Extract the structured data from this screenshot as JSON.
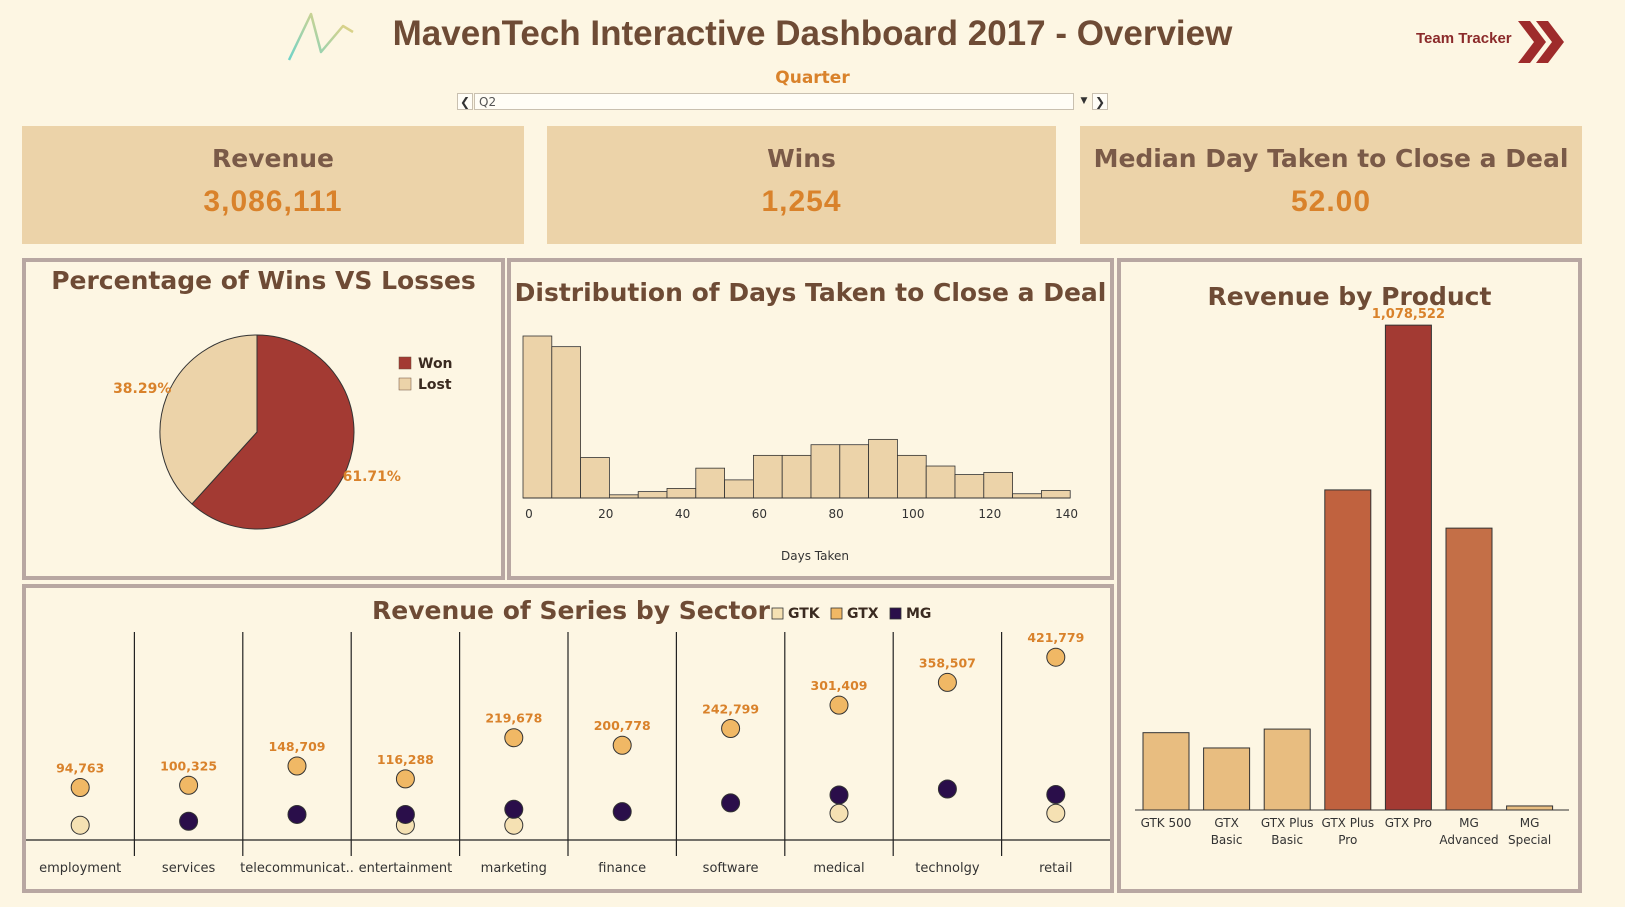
{
  "header": {
    "title": "MavenTech Interactive Dashboard 2017 - Overview",
    "team_tracker_label": "Team Tracker",
    "quarter_label": "Quarter",
    "quarter_value": "Q2"
  },
  "kpis": [
    {
      "label": "Revenue",
      "value": "3,086,111"
    },
    {
      "label": "Wins",
      "value": "1,254"
    },
    {
      "label": "Median Day Taken to Close a Deal",
      "value": "52.00"
    }
  ],
  "colors": {
    "won": "#a33a33",
    "lost": "#ecd3a9",
    "hist": "#ecd3a9",
    "gtk": "#f5e1b3",
    "gtx": "#f0b865",
    "mg": "#2a0e4a",
    "label": "#d9822b"
  },
  "pie_chart": {
    "title": "Percentage of Wins VS Losses",
    "legend": [
      {
        "name": "Won",
        "color": "#a33a33"
      },
      {
        "name": "Lost",
        "color": "#ecd3a9"
      }
    ]
  },
  "histogram": {
    "title": "Distribution of Days Taken to Close a Deal",
    "xlabel": "Days Taken",
    "ticks": [
      "0",
      "20",
      "40",
      "60",
      "80",
      "100",
      "120",
      "140"
    ]
  },
  "product_chart": {
    "title": "Revenue by Product"
  },
  "sector_chart": {
    "title": "Revenue of Series by Sector",
    "legend": [
      {
        "name": "GTK",
        "color": "#f5e1b3"
      },
      {
        "name": "GTX",
        "color": "#f0b865"
      },
      {
        "name": "MG",
        "color": "#2a0e4a"
      }
    ]
  },
  "chart_data": [
    {
      "type": "pie",
      "title": "Percentage of Wins VS Losses",
      "categories": [
        "Won",
        "Lost"
      ],
      "values": [
        61.71,
        38.29
      ],
      "labels": [
        "61.71%",
        "38.29%"
      ],
      "legend_position": "top-right"
    },
    {
      "type": "bar",
      "title": "Distribution of Days Taken to Close a Deal",
      "xlabel": "Days Taken",
      "bin_width": 7.5,
      "x_start": 0,
      "values": [
        152,
        142,
        38,
        3,
        6,
        9,
        28,
        17,
        40,
        40,
        50,
        50,
        55,
        40,
        30,
        22,
        24,
        4,
        7
      ],
      "xlim": [
        0,
        142.5
      ]
    },
    {
      "type": "bar",
      "title": "Revenue by Product",
      "categories": [
        "GTK 500",
        "GTX Basic",
        "GTX Plus Basic",
        "GTX Plus Pro",
        "GTX Pro",
        "MG Advanced",
        "MG Special"
      ],
      "category_lines": [
        [
          "GTK 500"
        ],
        [
          "GTX",
          "Basic"
        ],
        [
          "GTX Plus",
          "Basic"
        ],
        [
          "GTX Plus",
          "Pro"
        ],
        [
          "GTX Pro"
        ],
        [
          "MG",
          "Advanced"
        ],
        [
          "MG",
          "Special"
        ]
      ],
      "values": [
        172000,
        138000,
        180000,
        712000,
        1078522,
        627000,
        9000
      ],
      "value_labels": [
        "",
        "",
        "",
        "",
        "1,078,522",
        "",
        ""
      ],
      "bar_colors": [
        "#e8bd80",
        "#e8bd80",
        "#e8bd80",
        "#c0623f",
        "#a33a33",
        "#c46f47",
        "#e8bd80"
      ],
      "ylim": [
        0,
        1130000
      ]
    },
    {
      "type": "scatter",
      "title": "Revenue of Series by Sector",
      "categories": [
        "employment",
        "services",
        "telecommunicat..",
        "entertainment",
        "marketing",
        "finance",
        "software",
        "medical",
        "technolgy",
        "retail"
      ],
      "series": [
        {
          "name": "GTK",
          "values": [
            0,
            null,
            null,
            0,
            0,
            null,
            null,
            30000,
            null,
            30000
          ]
        },
        {
          "name": "GTX",
          "values": [
            94763,
            100325,
            148709,
            116288,
            219678,
            200778,
            242799,
            301409,
            358507,
            421779
          ]
        },
        {
          "name": "MG",
          "values": [
            null,
            10000,
            27000,
            27000,
            40000,
            34000,
            56000,
            76000,
            91000,
            77000
          ]
        }
      ],
      "value_labels": [
        "94,763",
        "100,325",
        "148,709",
        "116,288",
        "219,678",
        "200,778",
        "242,799",
        "301,409",
        "358,507",
        "421,779"
      ],
      "ylim": [
        -12000,
        470000
      ],
      "legend_position": "top"
    }
  ]
}
